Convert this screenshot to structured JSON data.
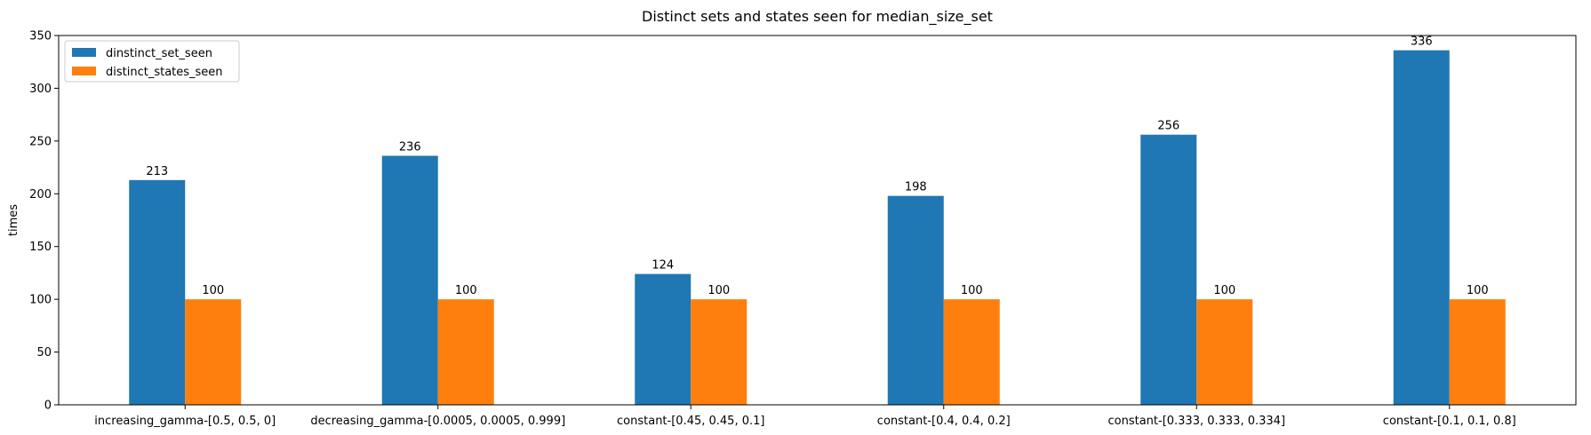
{
  "chart_data": {
    "type": "bar",
    "title": "Distinct sets and states seen for median_size_set",
    "xlabel": "",
    "ylabel": "times",
    "ylim": [
      0,
      350
    ],
    "yticks": [
      0,
      50,
      100,
      150,
      200,
      250,
      300,
      350
    ],
    "grid": false,
    "legend_position": "top-left",
    "categories": [
      "increasing_gamma-[0.5, 0.5, 0]",
      "decreasing_gamma-[0.0005, 0.0005, 0.999]",
      "constant-[0.45, 0.45, 0.1]",
      "constant-[0.4, 0.4, 0.2]",
      "constant-[0.333, 0.333, 0.334]",
      "constant-[0.1, 0.1, 0.8]"
    ],
    "series": [
      {
        "name": "dinstinct_set_seen",
        "color": "#1f77b4",
        "values": [
          213,
          236,
          124,
          198,
          256,
          336
        ]
      },
      {
        "name": "distinct_states_seen",
        "color": "#ff7f0e",
        "values": [
          100,
          100,
          100,
          100,
          100,
          100
        ]
      }
    ]
  }
}
